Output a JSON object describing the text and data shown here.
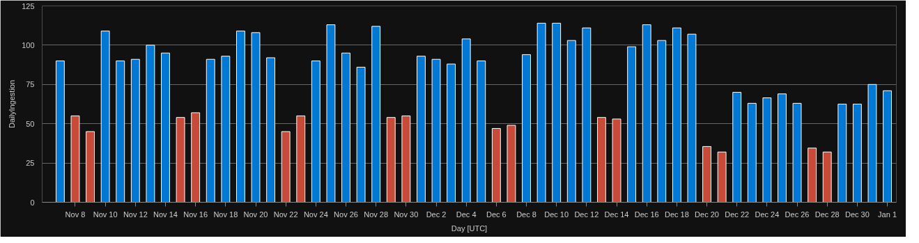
{
  "chart_data": {
    "type": "bar",
    "xlabel": "Day [UTC]",
    "ylabel": "DailyIngestion",
    "categories": [
      null,
      "Nov 8",
      null,
      "Nov 10",
      null,
      "Nov 12",
      null,
      "Nov 14",
      null,
      "Nov 16",
      null,
      "Nov 18",
      null,
      "Nov 20",
      null,
      "Nov 22",
      null,
      "Nov 24",
      null,
      "Nov 26",
      null,
      "Nov 28",
      null,
      "Nov 30",
      null,
      "Dec 2",
      null,
      "Dec 4",
      null,
      "Dec 6",
      null,
      "Dec 8",
      null,
      "Dec 10",
      null,
      "Dec 12",
      null,
      "Dec 14",
      null,
      "Dec 16",
      null,
      "Dec 18",
      null,
      "Dec 20",
      null,
      "Dec 22",
      null,
      "Dec 24",
      null,
      "Dec 26",
      null,
      "Dec 28",
      null,
      "Dec 30",
      null,
      "Jan 1"
    ],
    "values": [
      90,
      55,
      45,
      109,
      90,
      91,
      100,
      95,
      54,
      57,
      91,
      93,
      109,
      108,
      92,
      45,
      55,
      90,
      113,
      95,
      86,
      112,
      54,
      55,
      93,
      91,
      88,
      104,
      90,
      47,
      49,
      94,
      114,
      114,
      103,
      111,
      54,
      53,
      99,
      113,
      103,
      111,
      107,
      35.5,
      32,
      70,
      63,
      66.5,
      69,
      63,
      34.5,
      32,
      62.5,
      62.5,
      75,
      71
    ],
    "colors": [
      "#0078d4",
      "#c84a39",
      "#c84a39",
      "#0078d4",
      "#0078d4",
      "#0078d4",
      "#0078d4",
      "#0078d4",
      "#c84a39",
      "#c84a39",
      "#0078d4",
      "#0078d4",
      "#0078d4",
      "#0078d4",
      "#0078d4",
      "#c84a39",
      "#c84a39",
      "#0078d4",
      "#0078d4",
      "#0078d4",
      "#0078d4",
      "#0078d4",
      "#c84a39",
      "#c84a39",
      "#0078d4",
      "#0078d4",
      "#0078d4",
      "#0078d4",
      "#0078d4",
      "#c84a39",
      "#c84a39",
      "#0078d4",
      "#0078d4",
      "#0078d4",
      "#0078d4",
      "#0078d4",
      "#c84a39",
      "#c84a39",
      "#0078d4",
      "#0078d4",
      "#0078d4",
      "#0078d4",
      "#0078d4",
      "#c84a39",
      "#c84a39",
      "#0078d4",
      "#0078d4",
      "#0078d4",
      "#0078d4",
      "#0078d4",
      "#c84a39",
      "#c84a39",
      "#0078d4",
      "#0078d4",
      "#0078d4",
      "#0078d4"
    ],
    "ylim": [
      0,
      125
    ],
    "yticks": [
      0,
      25,
      50,
      75,
      100,
      125
    ],
    "grid": "y"
  }
}
